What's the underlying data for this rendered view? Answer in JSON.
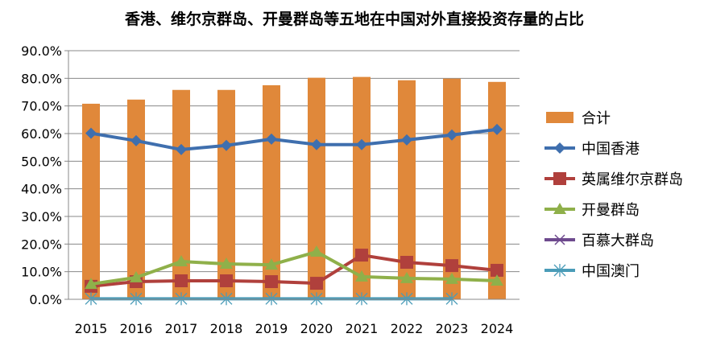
{
  "chart_data": {
    "type": "bar+line",
    "title": "香港、维尔京群岛、开曼群岛等五地在中国对外直接投资存量的占比",
    "categories": [
      "2015",
      "2016",
      "2017",
      "2018",
      "2019",
      "2020",
      "2021",
      "2022",
      "2023",
      "2024"
    ],
    "ylim": [
      0,
      90
    ],
    "yticks": [
      "0.0%",
      "10.0%",
      "20.0%",
      "30.0%",
      "40.0%",
      "50.0%",
      "60.0%",
      "70.0%",
      "80.0%",
      "90.0%"
    ],
    "grid": true,
    "legend_position": "right",
    "series": [
      {
        "name": "合计",
        "kind": "bar",
        "color": "#E0883A",
        "marker": "square",
        "values": [
          70.8,
          72.3,
          75.8,
          75.8,
          77.5,
          80.2,
          80.5,
          79.3,
          79.9,
          78.7
        ]
      },
      {
        "name": "中国香港",
        "kind": "line",
        "color": "#3F6FAE",
        "marker": "diamond",
        "values": [
          60.1,
          57.4,
          54.2,
          55.7,
          58.0,
          56.0,
          56.0,
          57.7,
          59.5,
          61.5
        ]
      },
      {
        "name": "英属维尔京群岛",
        "kind": "line",
        "color": "#B0403C",
        "marker": "square",
        "values": [
          4.7,
          6.4,
          6.7,
          6.7,
          6.4,
          5.8,
          16.0,
          13.4,
          12.2,
          10.5
        ]
      },
      {
        "name": "开曼群岛",
        "kind": "line",
        "color": "#8FB04A",
        "marker": "triangle",
        "values": [
          5.5,
          7.9,
          13.7,
          12.8,
          12.5,
          17.2,
          8.2,
          7.6,
          7.3,
          6.7
        ]
      },
      {
        "name": "百慕大群岛",
        "kind": "line",
        "color": "#6E4A8E",
        "marker": "x",
        "values": [
          null,
          null,
          null,
          null,
          null,
          null,
          null,
          null,
          null,
          null
        ]
      },
      {
        "name": "中国澳门",
        "kind": "line",
        "color": "#4A9CB8",
        "marker": "asterisk",
        "values": [
          0.2,
          0.2,
          0.2,
          0.2,
          0.2,
          0.2,
          0.2,
          0.2,
          0.2,
          null
        ]
      }
    ]
  }
}
